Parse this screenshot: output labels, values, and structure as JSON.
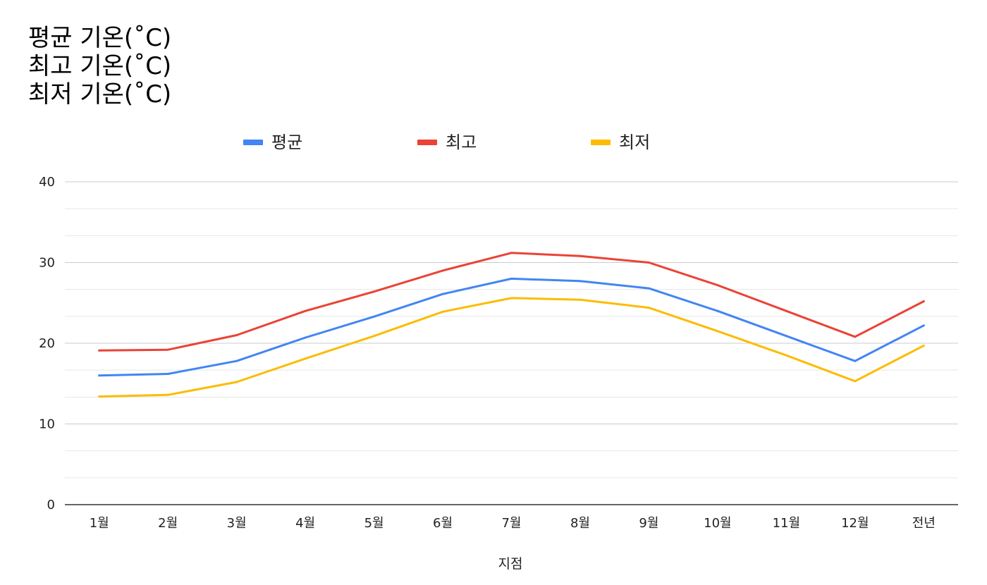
{
  "chart_data": {
    "type": "line",
    "title": "평균 기온(˚C)\n최고 기온(˚C)\n최저 기온(˚C)",
    "xlabel": "지점",
    "ylabel": "",
    "ylim": [
      0,
      40
    ],
    "yticks": [
      "0",
      "10",
      "20",
      "30",
      "40"
    ],
    "grid": true,
    "legend_position": "top",
    "categories": [
      "1월",
      "2월",
      "3월",
      "4월",
      "5월",
      "6월",
      "7월",
      "8월",
      "9월",
      "10월",
      "11월",
      "12월",
      "전년"
    ],
    "series": [
      {
        "name": "평균",
        "color": "#4285f4",
        "values": [
          16.0,
          16.2,
          17.8,
          20.7,
          23.3,
          26.1,
          28.0,
          27.7,
          26.8,
          24.0,
          20.9,
          17.8,
          22.2
        ]
      },
      {
        "name": "최고",
        "color": "#ea4335",
        "values": [
          19.1,
          19.2,
          21.0,
          24.0,
          26.4,
          29.0,
          31.2,
          30.8,
          30.0,
          27.2,
          24.0,
          20.8,
          25.2
        ]
      },
      {
        "name": "최저",
        "color": "#fbbc04",
        "values": [
          13.4,
          13.6,
          15.2,
          18.1,
          20.9,
          23.9,
          25.6,
          25.4,
          24.4,
          21.5,
          18.5,
          15.3,
          19.7
        ]
      }
    ]
  }
}
